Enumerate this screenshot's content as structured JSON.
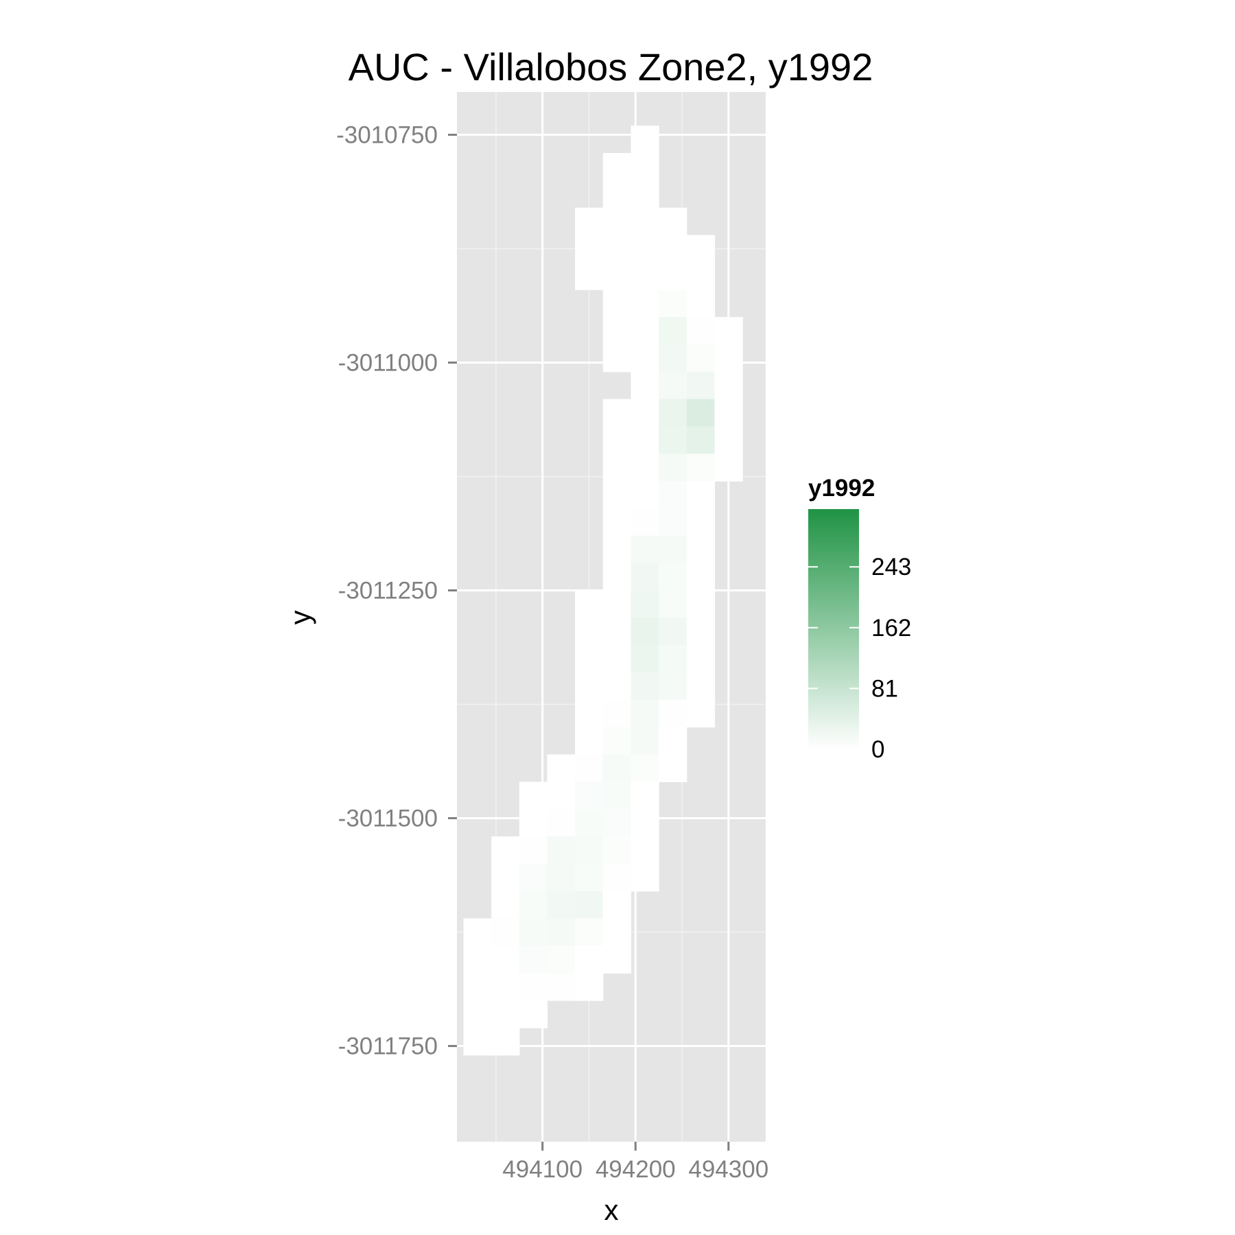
{
  "chart_data": {
    "type": "heatmap",
    "title": "AUC - Villalobos Zone2, y1992",
    "xlabel": "x",
    "ylabel": "y",
    "xlim": [
      494008,
      494340
    ],
    "ylim": [
      -3011855,
      -3010703
    ],
    "x_ticks": [
      494100,
      494200,
      494300
    ],
    "x_tick_labels": [
      "494100",
      "494200",
      "494300"
    ],
    "y_ticks": [
      -3010750,
      -3011000,
      -3011250,
      -3011500,
      -3011750
    ],
    "y_tick_labels": [
      "-3010750",
      "-3011000",
      "-3011250",
      "-3011500",
      "-3011750"
    ],
    "cell_size": 30,
    "x_col_start": 494030,
    "y_row_start": -3010755,
    "fill_scale": {
      "name": "y1992",
      "low": "#ffffff",
      "high": "#1f9344",
      "min": 0,
      "max": 320
    },
    "legend_title": "y1992",
    "legend_breaks": [
      0,
      81,
      162,
      243
    ],
    "legend_labels": [
      "0",
      "81",
      "162",
      "243"
    ],
    "legend_position": "right",
    "grid": true,
    "cells": [
      {
        "x": 494210,
        "y": -3010755,
        "value": 0
      },
      {
        "x": 494180,
        "y": -3010785,
        "value": 0
      },
      {
        "x": 494210,
        "y": -3010785,
        "value": 0
      },
      {
        "x": 494180,
        "y": -3010815,
        "value": 0
      },
      {
        "x": 494210,
        "y": -3010815,
        "value": 0
      },
      {
        "x": 494150,
        "y": -3010845,
        "value": 0
      },
      {
        "x": 494180,
        "y": -3010845,
        "value": 0
      },
      {
        "x": 494210,
        "y": -3010845,
        "value": 0
      },
      {
        "x": 494240,
        "y": -3010845,
        "value": 0
      },
      {
        "x": 494150,
        "y": -3010875,
        "value": 0
      },
      {
        "x": 494180,
        "y": -3010875,
        "value": 0
      },
      {
        "x": 494210,
        "y": -3010875,
        "value": 0
      },
      {
        "x": 494240,
        "y": -3010875,
        "value": 0
      },
      {
        "x": 494270,
        "y": -3010875,
        "value": 0
      },
      {
        "x": 494150,
        "y": -3010905,
        "value": 0
      },
      {
        "x": 494180,
        "y": -3010905,
        "value": 0
      },
      {
        "x": 494210,
        "y": -3010905,
        "value": 0
      },
      {
        "x": 494240,
        "y": -3010905,
        "value": 0
      },
      {
        "x": 494270,
        "y": -3010905,
        "value": 0
      },
      {
        "x": 494180,
        "y": -3010935,
        "value": 0
      },
      {
        "x": 494210,
        "y": -3010935,
        "value": 0
      },
      {
        "x": 494240,
        "y": -3010935,
        "value": 6
      },
      {
        "x": 494270,
        "y": -3010935,
        "value": 0
      },
      {
        "x": 494180,
        "y": -3010965,
        "value": 0
      },
      {
        "x": 494210,
        "y": -3010965,
        "value": 0
      },
      {
        "x": 494240,
        "y": -3010965,
        "value": 22
      },
      {
        "x": 494270,
        "y": -3010965,
        "value": 3
      },
      {
        "x": 494300,
        "y": -3010965,
        "value": 0
      },
      {
        "x": 494180,
        "y": -3010995,
        "value": 0
      },
      {
        "x": 494210,
        "y": -3010995,
        "value": 0
      },
      {
        "x": 494240,
        "y": -3010995,
        "value": 18
      },
      {
        "x": 494270,
        "y": -3010995,
        "value": 6
      },
      {
        "x": 494300,
        "y": -3010995,
        "value": 0
      },
      {
        "x": 494210,
        "y": -3011025,
        "value": 0
      },
      {
        "x": 494240,
        "y": -3011025,
        "value": 14
      },
      {
        "x": 494270,
        "y": -3011025,
        "value": 20
      },
      {
        "x": 494300,
        "y": -3011025,
        "value": 0
      },
      {
        "x": 494180,
        "y": -3011055,
        "value": 0
      },
      {
        "x": 494210,
        "y": -3011055,
        "value": 0
      },
      {
        "x": 494240,
        "y": -3011055,
        "value": 30
      },
      {
        "x": 494270,
        "y": -3011055,
        "value": 52
      },
      {
        "x": 494300,
        "y": -3011055,
        "value": 0
      },
      {
        "x": 494180,
        "y": -3011085,
        "value": 0
      },
      {
        "x": 494210,
        "y": -3011085,
        "value": 0
      },
      {
        "x": 494240,
        "y": -3011085,
        "value": 28
      },
      {
        "x": 494270,
        "y": -3011085,
        "value": 38
      },
      {
        "x": 494300,
        "y": -3011085,
        "value": 0
      },
      {
        "x": 494180,
        "y": -3011115,
        "value": 0
      },
      {
        "x": 494210,
        "y": -3011115,
        "value": 0
      },
      {
        "x": 494240,
        "y": -3011115,
        "value": 14
      },
      {
        "x": 494270,
        "y": -3011115,
        "value": 6
      },
      {
        "x": 494300,
        "y": -3011115,
        "value": 0
      },
      {
        "x": 494180,
        "y": -3011145,
        "value": 0
      },
      {
        "x": 494210,
        "y": -3011145,
        "value": 0
      },
      {
        "x": 494240,
        "y": -3011145,
        "value": 8
      },
      {
        "x": 494270,
        "y": -3011145,
        "value": 0
      },
      {
        "x": 494180,
        "y": -3011175,
        "value": 0
      },
      {
        "x": 494210,
        "y": -3011175,
        "value": 3
      },
      {
        "x": 494240,
        "y": -3011175,
        "value": 8
      },
      {
        "x": 494270,
        "y": -3011175,
        "value": 0
      },
      {
        "x": 494180,
        "y": -3011205,
        "value": 0
      },
      {
        "x": 494210,
        "y": -3011205,
        "value": 14
      },
      {
        "x": 494240,
        "y": -3011205,
        "value": 14
      },
      {
        "x": 494270,
        "y": -3011205,
        "value": 0
      },
      {
        "x": 494180,
        "y": -3011235,
        "value": 0
      },
      {
        "x": 494210,
        "y": -3011235,
        "value": 20
      },
      {
        "x": 494240,
        "y": -3011235,
        "value": 10
      },
      {
        "x": 494270,
        "y": -3011235,
        "value": 0
      },
      {
        "x": 494150,
        "y": -3011265,
        "value": 0
      },
      {
        "x": 494180,
        "y": -3011265,
        "value": 0
      },
      {
        "x": 494210,
        "y": -3011265,
        "value": 24
      },
      {
        "x": 494240,
        "y": -3011265,
        "value": 10
      },
      {
        "x": 494270,
        "y": -3011265,
        "value": 0
      },
      {
        "x": 494150,
        "y": -3011295,
        "value": 0
      },
      {
        "x": 494180,
        "y": -3011295,
        "value": 0
      },
      {
        "x": 494210,
        "y": -3011295,
        "value": 32
      },
      {
        "x": 494240,
        "y": -3011295,
        "value": 20
      },
      {
        "x": 494270,
        "y": -3011295,
        "value": 0
      },
      {
        "x": 494150,
        "y": -3011325,
        "value": 0
      },
      {
        "x": 494180,
        "y": -3011325,
        "value": 0
      },
      {
        "x": 494210,
        "y": -3011325,
        "value": 28
      },
      {
        "x": 494240,
        "y": -3011325,
        "value": 16
      },
      {
        "x": 494270,
        "y": -3011325,
        "value": 0
      },
      {
        "x": 494150,
        "y": -3011355,
        "value": 0
      },
      {
        "x": 494180,
        "y": -3011355,
        "value": 0
      },
      {
        "x": 494210,
        "y": -3011355,
        "value": 20
      },
      {
        "x": 494240,
        "y": -3011355,
        "value": 14
      },
      {
        "x": 494270,
        "y": -3011355,
        "value": 0
      },
      {
        "x": 494150,
        "y": -3011385,
        "value": 0
      },
      {
        "x": 494180,
        "y": -3011385,
        "value": 3
      },
      {
        "x": 494210,
        "y": -3011385,
        "value": 14
      },
      {
        "x": 494240,
        "y": -3011385,
        "value": 3
      },
      {
        "x": 494270,
        "y": -3011385,
        "value": 0
      },
      {
        "x": 494150,
        "y": -3011415,
        "value": 0
      },
      {
        "x": 494180,
        "y": -3011415,
        "value": 6
      },
      {
        "x": 494210,
        "y": -3011415,
        "value": 14
      },
      {
        "x": 494240,
        "y": -3011415,
        "value": 0
      },
      {
        "x": 494120,
        "y": -3011445,
        "value": 0
      },
      {
        "x": 494150,
        "y": -3011445,
        "value": 3
      },
      {
        "x": 494180,
        "y": -3011445,
        "value": 12
      },
      {
        "x": 494210,
        "y": -3011445,
        "value": 6
      },
      {
        "x": 494240,
        "y": -3011445,
        "value": 0
      },
      {
        "x": 494090,
        "y": -3011475,
        "value": 0
      },
      {
        "x": 494120,
        "y": -3011475,
        "value": 0
      },
      {
        "x": 494150,
        "y": -3011475,
        "value": 8
      },
      {
        "x": 494180,
        "y": -3011475,
        "value": 10
      },
      {
        "x": 494210,
        "y": -3011475,
        "value": 0
      },
      {
        "x": 494090,
        "y": -3011505,
        "value": 0
      },
      {
        "x": 494120,
        "y": -3011505,
        "value": 3
      },
      {
        "x": 494150,
        "y": -3011505,
        "value": 10
      },
      {
        "x": 494180,
        "y": -3011505,
        "value": 8
      },
      {
        "x": 494210,
        "y": -3011505,
        "value": 0
      },
      {
        "x": 494060,
        "y": -3011535,
        "value": 0
      },
      {
        "x": 494090,
        "y": -3011535,
        "value": 3
      },
      {
        "x": 494120,
        "y": -3011535,
        "value": 14
      },
      {
        "x": 494150,
        "y": -3011535,
        "value": 12
      },
      {
        "x": 494180,
        "y": -3011535,
        "value": 6
      },
      {
        "x": 494210,
        "y": -3011535,
        "value": 0
      },
      {
        "x": 494060,
        "y": -3011565,
        "value": 0
      },
      {
        "x": 494090,
        "y": -3011565,
        "value": 8
      },
      {
        "x": 494120,
        "y": -3011565,
        "value": 14
      },
      {
        "x": 494150,
        "y": -3011565,
        "value": 10
      },
      {
        "x": 494180,
        "y": -3011565,
        "value": 3
      },
      {
        "x": 494210,
        "y": -3011565,
        "value": 0
      },
      {
        "x": 494060,
        "y": -3011595,
        "value": 0
      },
      {
        "x": 494090,
        "y": -3011595,
        "value": 10
      },
      {
        "x": 494120,
        "y": -3011595,
        "value": 18
      },
      {
        "x": 494150,
        "y": -3011595,
        "value": 20
      },
      {
        "x": 494180,
        "y": -3011595,
        "value": 0
      },
      {
        "x": 494030,
        "y": -3011625,
        "value": 0
      },
      {
        "x": 494060,
        "y": -3011625,
        "value": 3
      },
      {
        "x": 494090,
        "y": -3011625,
        "value": 12
      },
      {
        "x": 494120,
        "y": -3011625,
        "value": 14
      },
      {
        "x": 494150,
        "y": -3011625,
        "value": 6
      },
      {
        "x": 494180,
        "y": -3011625,
        "value": 0
      },
      {
        "x": 494030,
        "y": -3011655,
        "value": 0
      },
      {
        "x": 494060,
        "y": -3011655,
        "value": 0
      },
      {
        "x": 494090,
        "y": -3011655,
        "value": 8
      },
      {
        "x": 494120,
        "y": -3011655,
        "value": 6
      },
      {
        "x": 494150,
        "y": -3011655,
        "value": 0
      },
      {
        "x": 494180,
        "y": -3011655,
        "value": 0
      },
      {
        "x": 494030,
        "y": -3011685,
        "value": 0
      },
      {
        "x": 494060,
        "y": -3011685,
        "value": 0
      },
      {
        "x": 494090,
        "y": -3011685,
        "value": 3
      },
      {
        "x": 494120,
        "y": -3011685,
        "value": 3
      },
      {
        "x": 494150,
        "y": -3011685,
        "value": 0
      },
      {
        "x": 494030,
        "y": -3011715,
        "value": 0
      },
      {
        "x": 494060,
        "y": -3011715,
        "value": 0
      },
      {
        "x": 494090,
        "y": -3011715,
        "value": 0
      },
      {
        "x": 494030,
        "y": -3011745,
        "value": 0
      },
      {
        "x": 494060,
        "y": -3011745,
        "value": 0
      }
    ]
  }
}
